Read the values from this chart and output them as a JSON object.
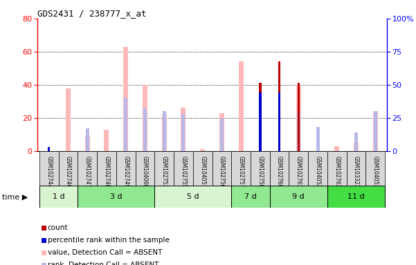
{
  "title": "GDS2431 / 238777_x_at",
  "samples": [
    "GSM102744",
    "GSM102746",
    "GSM102747",
    "GSM102748",
    "GSM102749",
    "GSM104060",
    "GSM102753",
    "GSM102755",
    "GSM104051",
    "GSM102756",
    "GSM102757",
    "GSM102758",
    "GSM102760",
    "GSM102761",
    "GSM104052",
    "GSM102763",
    "GSM103323",
    "GSM104053"
  ],
  "groups": [
    {
      "label": "1 d",
      "indices": [
        0,
        1
      ],
      "color": "#d8f5d0"
    },
    {
      "label": "3 d",
      "indices": [
        2,
        3,
        4,
        5
      ],
      "color": "#90e890"
    },
    {
      "label": "5 d",
      "indices": [
        6,
        7,
        8,
        9
      ],
      "color": "#d8f5d0"
    },
    {
      "label": "7 d",
      "indices": [
        10,
        11
      ],
      "color": "#90e890"
    },
    {
      "label": "9 d",
      "indices": [
        12,
        13,
        14
      ],
      "color": "#90e890"
    },
    {
      "label": "11 d",
      "indices": [
        15,
        16,
        17
      ],
      "color": "#44dd44"
    }
  ],
  "count_values": [
    0,
    0,
    0,
    0,
    0,
    0,
    0,
    0,
    0,
    0,
    0,
    41,
    54,
    41,
    0,
    0,
    0,
    0
  ],
  "percentile_values": [
    3,
    0,
    0,
    0,
    0,
    0,
    0,
    0,
    0,
    0,
    0,
    44,
    44,
    0,
    0,
    0,
    0,
    0
  ],
  "absent_value_values": [
    0,
    38,
    9,
    13,
    63,
    40,
    22,
    26,
    1,
    23,
    54,
    0,
    0,
    40,
    0,
    3,
    5,
    24
  ],
  "absent_rank_values": [
    0,
    0,
    17,
    0,
    40,
    32,
    30,
    28,
    0,
    25,
    0,
    0,
    0,
    30,
    18,
    0,
    14,
    30
  ],
  "count_color": "#bb0000",
  "percentile_color": "#0000cc",
  "absent_value_color": "#ffb8b8",
  "absent_rank_color": "#b8b8e8",
  "left_ylim": [
    0,
    80
  ],
  "right_ylim": [
    0,
    100
  ],
  "left_yticks": [
    0,
    20,
    40,
    60,
    80
  ],
  "right_yticks": [
    0,
    25,
    50,
    75,
    100
  ],
  "right_yticklabels": [
    "0",
    "25",
    "50",
    "75",
    "100%"
  ],
  "plot_bg": "#ffffff",
  "fig_bg": "#ffffff",
  "label_bg": "#d8d8d8"
}
